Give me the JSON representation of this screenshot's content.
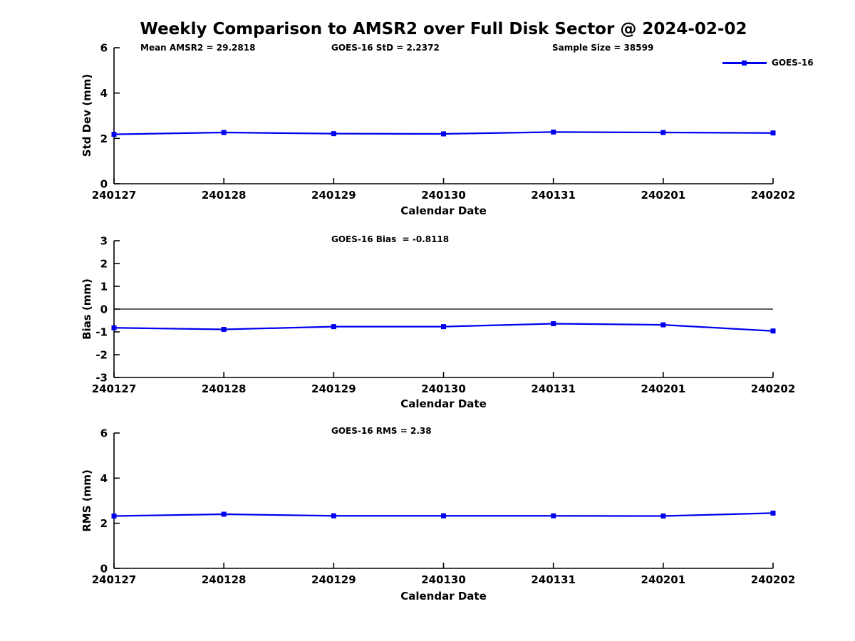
{
  "title": "Weekly Comparison to AMSR2 over Full Disk Sector @ 2024-02-02",
  "legend": {
    "label": "GOES-16",
    "color": "#0000ee"
  },
  "chart_data": [
    {
      "type": "line",
      "annotations": [
        "Mean AMSR2 = 29.2818",
        "GOES-16 StD = 2.2372",
        "Sample Size = 38599"
      ],
      "ylabel": "Std Dev (mm)",
      "xlabel": "Calendar Date",
      "categories": [
        "240127",
        "240128",
        "240129",
        "240130",
        "240131",
        "240201",
        "240202"
      ],
      "series": [
        {
          "name": "GOES-16",
          "color": "#0000ee",
          "values": [
            2.18,
            2.26,
            2.21,
            2.2,
            2.28,
            2.26,
            2.24
          ]
        }
      ],
      "ylim": [
        0,
        6
      ],
      "yticks": [
        0,
        2,
        4,
        6
      ],
      "grid": false,
      "zero_line": false,
      "legend_position": "upper-right-outside"
    },
    {
      "type": "line",
      "annotations": [
        "GOES-16 Bias  = -0.8118"
      ],
      "ylabel": "Bias (mm)",
      "xlabel": "Calendar Date",
      "categories": [
        "240127",
        "240128",
        "240129",
        "240130",
        "240131",
        "240201",
        "240202"
      ],
      "series": [
        {
          "name": "GOES-16",
          "color": "#0000ee",
          "values": [
            -0.82,
            -0.89,
            -0.77,
            -0.77,
            -0.64,
            -0.69,
            -0.96
          ]
        }
      ],
      "ylim": [
        -3,
        3
      ],
      "yticks": [
        3,
        2,
        1,
        0,
        -1,
        -2,
        -3
      ],
      "grid": false,
      "zero_line": true
    },
    {
      "type": "line",
      "annotations": [
        "GOES-16 RMS = 2.38"
      ],
      "ylabel": "RMS (mm)",
      "xlabel": "Calendar Date",
      "categories": [
        "240127",
        "240128",
        "240129",
        "240130",
        "240131",
        "240201",
        "240202"
      ],
      "series": [
        {
          "name": "GOES-16",
          "color": "#0000ee",
          "values": [
            2.32,
            2.4,
            2.33,
            2.33,
            2.33,
            2.32,
            2.45
          ]
        }
      ],
      "ylim": [
        0,
        6
      ],
      "yticks": [
        0,
        2,
        4,
        6
      ],
      "grid": false,
      "zero_line": false
    }
  ]
}
